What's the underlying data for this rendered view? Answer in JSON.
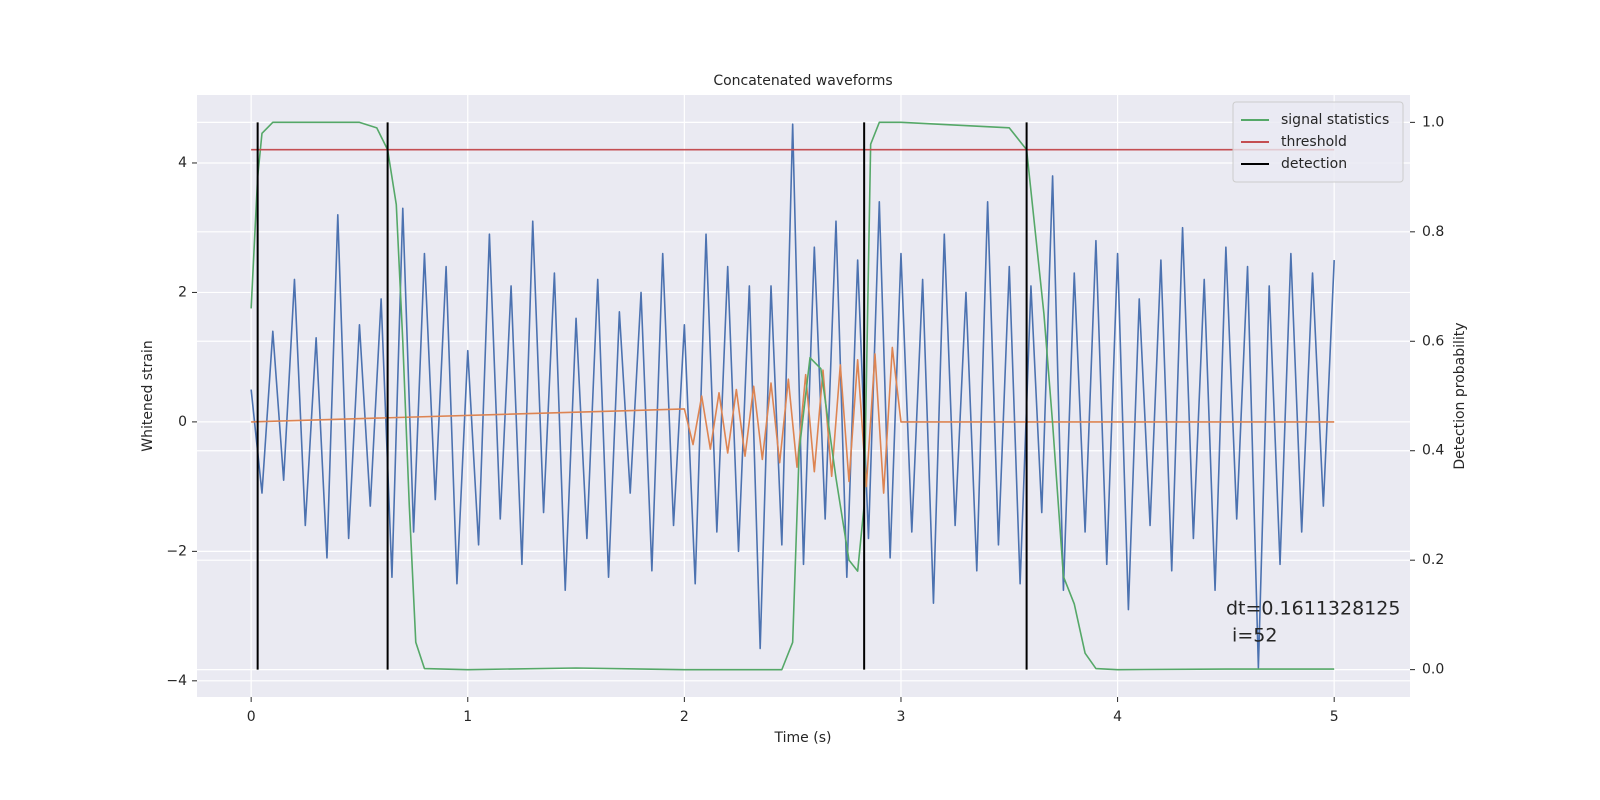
{
  "chart_data": {
    "type": "line",
    "title": "Concatenated waveforms",
    "xlabel": "Time (s)",
    "ylabel": "Whitened strain",
    "y2label": "Detection probability",
    "xlim": [
      -0.25,
      5.35
    ],
    "ylim": [
      -4.25,
      5.05
    ],
    "y2lim": [
      -0.05,
      1.05
    ],
    "xticks": [
      0,
      1,
      2,
      3,
      4,
      5
    ],
    "yticks": [
      {
        "value": -4,
        "label": "−4"
      },
      {
        "value": -2,
        "label": "−2"
      },
      0,
      2,
      4
    ],
    "y2ticks": [
      {
        "value": 0,
        "label": "0.0"
      },
      0.2,
      0.4,
      0.6,
      0.8,
      {
        "value": 1,
        "label": "1.0"
      }
    ],
    "grid": true,
    "legend": "upper right",
    "annotation": [
      "dt=0.1611328125",
      " i=52"
    ],
    "series": [
      {
        "color": "#4c72b0",
        "x": [
          0,
          0.05,
          0.1,
          0.15,
          0.2,
          0.25,
          0.3,
          0.35,
          0.4,
          0.45,
          0.5,
          0.55,
          0.6,
          0.65,
          0.7,
          0.75,
          0.8,
          0.85,
          0.9,
          0.95,
          1,
          1.05,
          1.1,
          1.15,
          1.2,
          1.25,
          1.3,
          1.35,
          1.4,
          1.45,
          1.5,
          1.55,
          1.6,
          1.65,
          1.7,
          1.75,
          1.8,
          1.85,
          1.9,
          1.95,
          2,
          2.05,
          2.1,
          2.15,
          2.2,
          2.25,
          2.3,
          2.35,
          2.4,
          2.45,
          2.5,
          2.55,
          2.6,
          2.65,
          2.7,
          2.75,
          2.8,
          2.85,
          2.9,
          2.95,
          3,
          3.05,
          3.1,
          3.15,
          3.2,
          3.25,
          3.3,
          3.35,
          3.4,
          3.45,
          3.5,
          3.55,
          3.6,
          3.65,
          3.7,
          3.75,
          3.8,
          3.85,
          3.9,
          3.95,
          4,
          4.05,
          4.1,
          4.15,
          4.2,
          4.25,
          4.3,
          4.35,
          4.4,
          4.45,
          4.5,
          4.55,
          4.6,
          4.65,
          4.7,
          4.75,
          4.8,
          4.85,
          4.9,
          4.95,
          5
        ],
        "values": [
          0.5,
          -1.1,
          1.4,
          -0.9,
          2.2,
          -1.6,
          1.3,
          -2.1,
          3.2,
          -1.8,
          1.5,
          -1.3,
          1.9,
          -2.4,
          3.3,
          -1.7,
          2.6,
          -1.2,
          2.4,
          -2.5,
          1.1,
          -1.9,
          2.9,
          -1.5,
          2.1,
          -2.2,
          3.1,
          -1.4,
          2.3,
          -2.6,
          1.6,
          -1.8,
          2.2,
          -2.4,
          1.7,
          -1.1,
          2.0,
          -2.3,
          2.6,
          -1.6,
          1.5,
          -2.5,
          2.9,
          -1.7,
          2.4,
          -2.0,
          2.1,
          -3.5,
          2.1,
          -1.9,
          4.6,
          -2.2,
          2.7,
          -1.5,
          3.1,
          -2.4,
          2.5,
          -1.8,
          3.4,
          -2.1,
          2.6,
          -1.7,
          2.2,
          -2.8,
          2.9,
          -1.6,
          2.0,
          -2.3,
          3.4,
          -1.9,
          2.4,
          -2.5,
          2.1,
          -1.4,
          3.8,
          -2.6,
          2.3,
          -1.7,
          2.8,
          -2.2,
          2.6,
          -2.9,
          1.9,
          -1.6,
          2.5,
          -2.3,
          3.0,
          -1.8,
          2.2,
          -2.6,
          2.7,
          -1.5,
          2.4,
          -3.8,
          2.1,
          -2.2,
          2.6,
          -1.7,
          2.3,
          -1.3,
          2.5
        ]
      },
      {
        "color": "#dd8452",
        "x": [
          0,
          2,
          2.04,
          2.08,
          2.12,
          2.16,
          2.2,
          2.24,
          2.28,
          2.32,
          2.36,
          2.4,
          2.44,
          2.48,
          2.52,
          2.56,
          2.6,
          2.64,
          2.68,
          2.72,
          2.76,
          2.8,
          2.84,
          2.88,
          2.92,
          2.96,
          3,
          5
        ],
        "values": [
          0,
          0.2,
          -0.35,
          0.4,
          -0.42,
          0.45,
          -0.48,
          0.5,
          -0.53,
          0.55,
          -0.58,
          0.6,
          -0.63,
          0.66,
          -0.7,
          0.73,
          -0.77,
          0.8,
          -0.84,
          0.88,
          -0.92,
          0.96,
          -1.0,
          1.05,
          -1.1,
          1.15,
          0,
          0
        ]
      },
      {
        "name": "signal statistics",
        "color": "#55a868",
        "axis": "y2",
        "x": [
          0,
          0.03,
          0.05,
          0.1,
          0.5,
          0.58,
          0.63,
          0.67,
          0.7,
          0.73,
          0.76,
          0.8,
          1,
          1.5,
          2,
          2.45,
          2.5,
          2.53,
          2.58,
          2.63,
          2.7,
          2.76,
          2.8,
          2.83,
          2.86,
          2.9,
          3,
          3.5,
          3.58,
          3.62,
          3.66,
          3.7,
          3.75,
          3.8,
          3.85,
          3.9,
          4,
          4.5,
          5
        ],
        "values": [
          0.66,
          0.9,
          0.98,
          1.0,
          1.0,
          0.99,
          0.95,
          0.85,
          0.6,
          0.3,
          0.05,
          0.002,
          0,
          0.003,
          0,
          0,
          0.05,
          0.4,
          0.57,
          0.55,
          0.35,
          0.2,
          0.18,
          0.3,
          0.96,
          1.0,
          1.0,
          0.99,
          0.95,
          0.8,
          0.65,
          0.45,
          0.17,
          0.12,
          0.03,
          0.002,
          0,
          0.001,
          0.001
        ]
      },
      {
        "name": "threshold",
        "color": "#c44e52",
        "axis": "y2",
        "x": [
          0,
          5
        ],
        "values": [
          0.95,
          0.95
        ]
      },
      {
        "name": "detection",
        "color": "#000000",
        "axis": "y2",
        "type": "vlines",
        "x": [
          0.03,
          0.63,
          2.83,
          3.58
        ],
        "ymin": 0,
        "ymax": 1
      }
    ]
  }
}
